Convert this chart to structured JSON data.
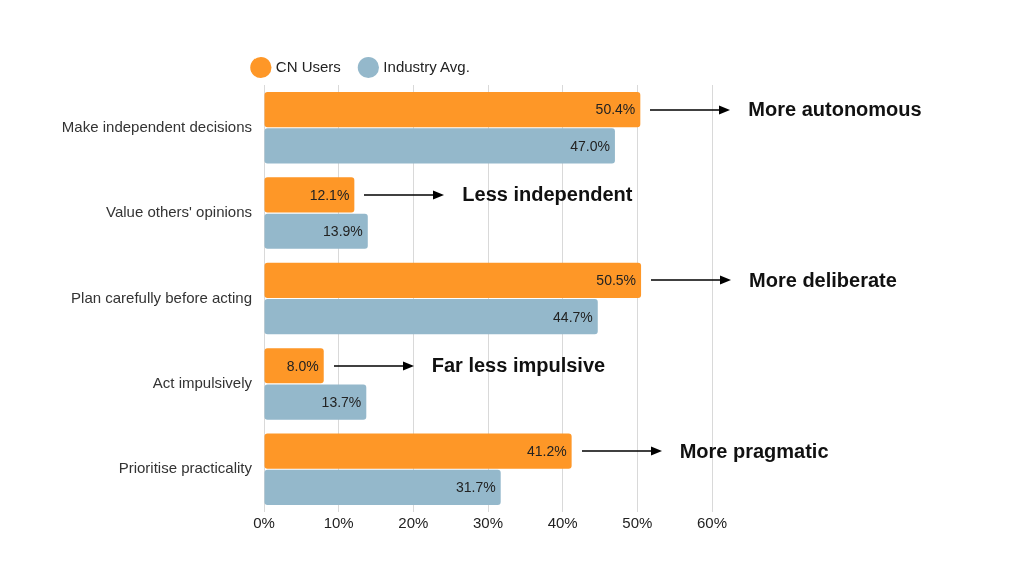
{
  "chart_data": {
    "type": "bar",
    "orientation": "horizontal",
    "categories": [
      "Make independent decisions",
      "Value others' opinions",
      "Plan carefully before acting",
      "Act impulsively",
      "Prioritise practicality"
    ],
    "series": [
      {
        "name": "CN Users",
        "color": "#fe9727",
        "values": [
          50.4,
          12.1,
          50.5,
          8.0,
          41.2
        ],
        "value_labels": [
          "50.4%",
          "12.1%",
          "50.5%",
          "8.0%",
          "41.2%"
        ]
      },
      {
        "name": "Industry Avg.",
        "color": "#94b8cb",
        "values": [
          47.0,
          13.9,
          44.7,
          13.7,
          31.7
        ],
        "value_labels": [
          "47.0%",
          "13.9%",
          "44.7%",
          "13.7%",
          "31.7%"
        ]
      }
    ],
    "xlim": [
      0,
      60
    ],
    "xticks": [
      {
        "value": 0,
        "label": "0%"
      },
      {
        "value": 10,
        "label": "10%"
      },
      {
        "value": 20,
        "label": "20%"
      },
      {
        "value": 30,
        "label": "30%"
      },
      {
        "value": 40,
        "label": "40%"
      },
      {
        "value": 50,
        "label": "50%"
      },
      {
        "value": 60,
        "label": "60%"
      }
    ],
    "grid": "x",
    "legend": "top",
    "annotations": [
      "More autonomous",
      "Less independent",
      "More deliberate",
      "Far less impulsive",
      "More pragmatic"
    ]
  }
}
